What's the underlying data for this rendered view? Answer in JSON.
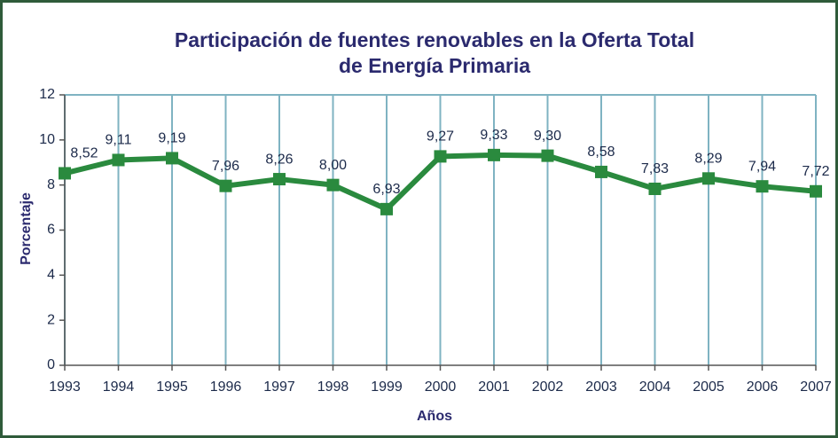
{
  "chart_data": {
    "type": "line",
    "title": [
      "Participación de fuentes renovables en la Oferta Total",
      "de Energía Primaria"
    ],
    "xlabel": "Años",
    "ylabel": "Porcentaje",
    "categories": [
      "1993",
      "1994",
      "1995",
      "1996",
      "1997",
      "1998",
      "1999",
      "2000",
      "2001",
      "2002",
      "2003",
      "2004",
      "2005",
      "2006",
      "2007"
    ],
    "series": [
      {
        "name": "Participación",
        "color": "#2a8a3e",
        "values": [
          8.52,
          9.11,
          9.19,
          7.96,
          8.26,
          8.0,
          6.93,
          9.27,
          9.33,
          9.3,
          8.58,
          7.83,
          8.29,
          7.94,
          7.72
        ],
        "value_labels": [
          "8,52",
          "9,11",
          "9,19",
          "7,96",
          "8,26",
          "8,00",
          "6,93",
          "9,27",
          "9,33",
          "9,30",
          "8,58",
          "7,83",
          "8,29",
          "7,94",
          "7,72"
        ]
      }
    ],
    "ylim": [
      0,
      12
    ],
    "yticks": [
      0,
      2,
      4,
      6,
      8,
      10,
      12
    ],
    "grid": true
  }
}
